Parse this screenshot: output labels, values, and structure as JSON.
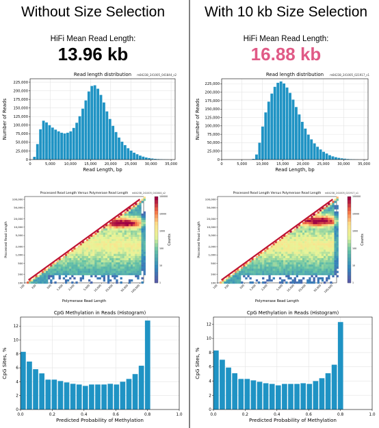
{
  "panels": [
    {
      "heading": "Without Size Selection",
      "metric_label": "HiFi Mean Read Length:",
      "metric_value": "13.96 kb",
      "metric_color": "#000000",
      "run_ids": [
        "m84238_241005_041844_s2",
        "m84238_241005_041844_s2"
      ]
    },
    {
      "heading": "With 10 kb Size Selection",
      "metric_label": "HiFi Mean Read Length:",
      "metric_value": "16.88 kb",
      "metric_color": "#e05a86",
      "run_ids": [
        "m84238_241005_021917_s1",
        "m84238_241005_021917_s1"
      ]
    }
  ],
  "chart_data": [
    {
      "panel": 0,
      "type": "bar",
      "title": "Read length distribution",
      "xlabel": "Read Length, bp",
      "ylabel": "Number of Reads",
      "xlim": [
        0,
        36000
      ],
      "ylim": [
        0,
        235000
      ],
      "x_ticks": [
        0,
        5000,
        10000,
        15000,
        20000,
        25000,
        30000,
        35000
      ],
      "x_tick_labels": [
        "0",
        "5,000",
        "10,000",
        "15,000",
        "20,000",
        "25,000",
        "30,000",
        "35,000"
      ],
      "y_ticks": [
        0,
        25000,
        50000,
        75000,
        100000,
        125000,
        150000,
        175000,
        200000,
        225000
      ],
      "y_tick_labels": [
        "0",
        "25,000",
        "50,000",
        "75,000",
        "100,000",
        "125,000",
        "150,000",
        "175,000",
        "200,000",
        "225,000"
      ],
      "bin_width": 750,
      "bin_starts": [
        750,
        1500,
        2250,
        3000,
        3750,
        4500,
        5250,
        6000,
        6750,
        7500,
        8250,
        9000,
        9750,
        10500,
        11250,
        12000,
        12750,
        13500,
        14250,
        15000,
        15750,
        16500,
        17250,
        18000,
        18750,
        19500,
        20250,
        21000,
        21750,
        22500,
        23250,
        24000,
        24750,
        25500,
        26250,
        27000,
        27750,
        28500,
        29250,
        30000,
        30750,
        31500,
        32250,
        33000,
        33750
      ],
      "values": [
        8000,
        45000,
        88000,
        113000,
        108000,
        100000,
        93000,
        87000,
        82000,
        78000,
        76000,
        78000,
        82000,
        92000,
        107000,
        126000,
        148000,
        172000,
        198000,
        214000,
        216000,
        206000,
        188000,
        166000,
        140000,
        118000,
        98000,
        80000,
        64000,
        52000,
        42000,
        33000,
        26000,
        20000,
        15500,
        11500,
        8500,
        6000,
        4300,
        3000,
        2000,
        1400,
        900,
        500,
        300
      ],
      "grid": true
    },
    {
      "panel": 1,
      "type": "bar",
      "title": "Read length distribution",
      "xlabel": "Read Length, bp",
      "ylabel": "Number of Reads",
      "xlim": [
        0,
        36000
      ],
      "ylim": [
        0,
        240000
      ],
      "x_ticks": [
        0,
        5000,
        10000,
        15000,
        20000,
        25000,
        30000,
        35000
      ],
      "x_tick_labels": [
        "0",
        "5,000",
        "10,000",
        "15,000",
        "20,000",
        "25,000",
        "30,000",
        "35,000"
      ],
      "y_ticks": [
        0,
        25000,
        50000,
        75000,
        100000,
        125000,
        150000,
        175000,
        200000,
        225000
      ],
      "y_tick_labels": [
        "0",
        "25,000",
        "50,000",
        "75,000",
        "100,000",
        "125,000",
        "150,000",
        "175,000",
        "200,000",
        "225,000"
      ],
      "bin_width": 750,
      "bin_starts": [
        7500,
        8250,
        9000,
        9750,
        10500,
        11250,
        12000,
        12750,
        13500,
        14250,
        15000,
        15750,
        16500,
        17250,
        18000,
        18750,
        19500,
        20250,
        21000,
        21750,
        22500,
        23250,
        24000,
        24750,
        25500,
        26250,
        27000,
        27750,
        28500,
        29250,
        30000,
        30750,
        31500,
        32250,
        33000
      ],
      "values": [
        2000,
        15000,
        50000,
        98000,
        140000,
        172000,
        196000,
        216000,
        228000,
        232000,
        226000,
        214000,
        198000,
        178000,
        156000,
        134000,
        112000,
        92000,
        74000,
        60000,
        48000,
        38000,
        30000,
        23000,
        18000,
        13000,
        9500,
        7000,
        5000,
        3500,
        2500,
        1600,
        1000,
        600,
        300
      ],
      "grid": true
    },
    {
      "panel": 0,
      "type": "heatmap",
      "title": "Processed Read Length Versus Polymerase Read Length",
      "xlabel": "Polymerase Read Length",
      "ylabel": "Processed Read Length",
      "colorbar_label": "Counts",
      "log_scale": true,
      "x_tick_labels": [
        "100",
        "200",
        "500",
        "1,000",
        "2,000",
        "5,000",
        "10,000",
        "20,000",
        "50,000",
        "100,000"
      ],
      "y_tick_labels": [
        "100",
        "200",
        "500",
        "1,000",
        "2,000",
        "5,000",
        "10,000",
        "20,000",
        "50,000",
        "100,000"
      ],
      "colorbar_tick_labels": [
        "1",
        "10",
        "100",
        "1000",
        "10000",
        "100000"
      ],
      "hotspot_processed_length": 15000
    },
    {
      "panel": 1,
      "type": "heatmap",
      "title": "Processed Read Length Versus Polymerase Read Length",
      "xlabel": "Polymerase Read Length",
      "ylabel": "Processed Read Length",
      "colorbar_label": "Counts",
      "log_scale": true,
      "x_tick_labels": [
        "100",
        "200",
        "500",
        "1,000",
        "2,000",
        "5,000",
        "10,000",
        "20,000",
        "50,000",
        "100,000"
      ],
      "y_tick_labels": [
        "100",
        "200",
        "500",
        "1,000",
        "2,000",
        "5,000",
        "10,000",
        "20,000",
        "50,000",
        "100,000"
      ],
      "colorbar_tick_labels": [
        "1",
        "10",
        "100",
        "1000",
        "10000",
        "100000"
      ],
      "hotspot_processed_length": 18000
    },
    {
      "panel": 0,
      "type": "bar",
      "title": "CpG Methylation in Reads (Histogram)",
      "xlabel": "Predicted Probability of Methylation",
      "ylabel": "CpG Sites, %",
      "xlim": [
        0,
        1
      ],
      "ylim": [
        0,
        13.3
      ],
      "x_ticks": [
        0,
        0.2,
        0.4,
        0.6,
        0.8,
        1.0
      ],
      "x_tick_labels": [
        "0.0",
        "0.2",
        "0.4",
        "0.6",
        "0.8",
        "1.0"
      ],
      "y_ticks": [
        0,
        2,
        4,
        6,
        8,
        10,
        12
      ],
      "y_tick_labels": [
        "0",
        "2",
        "4",
        "6",
        "8",
        "10",
        "12"
      ],
      "bin_width": 0.0392,
      "values": [
        8.3,
        6.9,
        5.8,
        5.2,
        4.3,
        4.3,
        4.1,
        3.9,
        3.7,
        3.6,
        3.4,
        3.6,
        3.6,
        3.6,
        3.7,
        3.6,
        4.0,
        4.4,
        5.1,
        6.3,
        12.8
      ],
      "grid": true
    },
    {
      "panel": 1,
      "type": "bar",
      "title": "CpG Methylation in Reads (Histogram)",
      "xlabel": "Predicted Probability of Methylation",
      "ylabel": "CpG Sites, %",
      "xlim": [
        0,
        1
      ],
      "ylim": [
        0,
        13.0
      ],
      "x_ticks": [
        0,
        0.2,
        0.4,
        0.6,
        0.8,
        1.0
      ],
      "x_tick_labels": [
        "0.0",
        "0.2",
        "0.4",
        "0.6",
        "0.8",
        "1.0"
      ],
      "y_ticks": [
        0,
        2,
        4,
        6,
        8,
        10,
        12
      ],
      "y_tick_labels": [
        "0",
        "2",
        "4",
        "6",
        "8",
        "10",
        "12"
      ],
      "bin_width": 0.0392,
      "values": [
        8.3,
        7.0,
        5.9,
        5.1,
        4.3,
        4.3,
        4.1,
        3.9,
        3.7,
        3.6,
        3.4,
        3.6,
        3.6,
        3.6,
        3.7,
        3.6,
        4.0,
        4.4,
        5.1,
        6.3,
        12.3
      ],
      "grid": true
    }
  ],
  "colors": {
    "bar": "#1f93c4",
    "divider": "#808080"
  }
}
